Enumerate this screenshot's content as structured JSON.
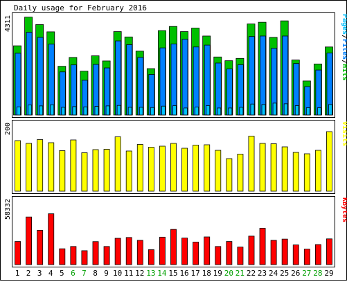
{
  "chart_data": {
    "type": "bar",
    "title": "Daily usage for February 2016",
    "categories": [
      "1",
      "2",
      "3",
      "4",
      "5",
      "6",
      "7",
      "8",
      "9",
      "10",
      "11",
      "12",
      "13",
      "14",
      "15",
      "16",
      "17",
      "18",
      "19",
      "20",
      "21",
      "22",
      "23",
      "24",
      "25",
      "26",
      "27",
      "28",
      "29"
    ],
    "weekend_days": [
      "6",
      "7",
      "13",
      "14",
      "20",
      "21",
      "27",
      "28"
    ],
    "panels": [
      {
        "id": "pages-files-hits",
        "label": "Pages/Files/Hits",
        "label_parts": [
          "Pages",
          "/",
          "Files",
          "/",
          "Hits"
        ],
        "label_colors": [
          "#00c0ff",
          "#000000",
          "#0080ff",
          "#000000",
          "#00c000"
        ],
        "ymax_label": "4311",
        "ymax": 4311,
        "series": [
          {
            "name": "Hits",
            "color": "#00c000",
            "values": [
              2970,
              4200,
              3880,
              3570,
              2090,
              2470,
              1880,
              2540,
              2320,
              3580,
              3350,
              2740,
              1990,
              3620,
              3800,
              3580,
              3730,
              3390,
              2490,
              2330,
              2430,
              3910,
              3980,
              3330,
              4040,
              2360,
              1460,
              2190,
              2920
            ]
          },
          {
            "name": "Files",
            "color": "#0080ff",
            "values": [
              2650,
              3550,
              3330,
              3040,
              1850,
              2150,
              1490,
              2170,
              2020,
              3180,
              3020,
              2470,
              1740,
              2880,
              3050,
              3250,
              2920,
              3000,
              2230,
              1980,
              2160,
              3370,
              3390,
              2860,
              3390,
              2210,
              1220,
              1930,
              2660
            ]
          },
          {
            "name": "Pages",
            "color": "#00c0ff",
            "values": [
              350,
              430,
              390,
              440,
              330,
              360,
              350,
              370,
              390,
              410,
              330,
              330,
              320,
              380,
              400,
              300,
              340,
              400,
              300,
              300,
              330,
              470,
              450,
              510,
              480,
              400,
              310,
              310,
              450
            ]
          }
        ]
      },
      {
        "id": "visits",
        "label": "Visits",
        "label_color": "#ffff00",
        "ymax_label": "200",
        "ymax": 200,
        "series": [
          {
            "name": "Visits",
            "color": "#ffff00",
            "values": [
              146,
              138,
              149,
              140,
              117,
              148,
              111,
              120,
              121,
              157,
              116,
              135,
              127,
              130,
              138,
              124,
              133,
              134,
              118,
              94,
              107,
              159,
              138,
              137,
              128,
              112,
              108,
              118,
              172
            ]
          }
        ]
      },
      {
        "id": "kbytes",
        "label": "KBytes",
        "label_color": "#ff0000",
        "ymax_label": "58332",
        "ymax": 58332,
        "series": [
          {
            "name": "KBytes",
            "color": "#ff0000",
            "values": [
              20300,
              41800,
              30100,
              44600,
              13900,
              15900,
              12200,
              20200,
              15900,
              23100,
              23800,
              21300,
              13100,
              24100,
              30900,
              23300,
              19800,
              24300,
              15900,
              20300,
              15400,
              25000,
              31900,
              21300,
              22400,
              17300,
              13600,
              17600,
              22600
            ]
          }
        ]
      }
    ]
  }
}
